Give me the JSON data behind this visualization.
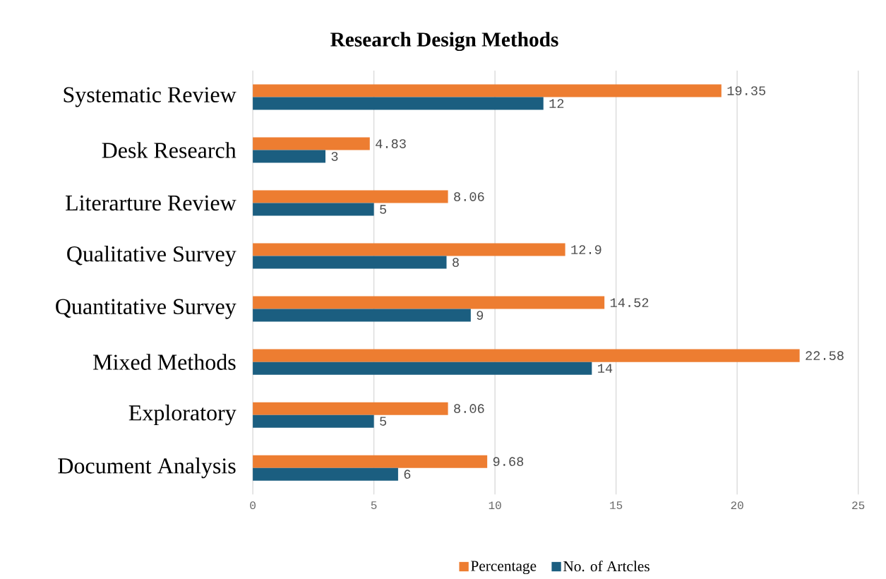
{
  "chart_data": {
    "type": "bar",
    "orientation": "horizontal",
    "title": "Research Design Methods",
    "categories": [
      "Systematic Review",
      "Desk Research",
      "Literarture Review",
      "Qualitative Survey",
      "Quantitative Survey",
      "Mixed  Methods",
      "Exploratory",
      "Document Analysis"
    ],
    "series": [
      {
        "name": "Percentage",
        "color": "#ed7d31",
        "values": [
          19.35,
          4.83,
          8.06,
          12.9,
          14.52,
          22.58,
          8.06,
          9.68
        ]
      },
      {
        "name": "No. of Artcles",
        "color": "#1b5e80",
        "values": [
          12,
          3,
          5,
          8,
          9,
          14,
          5,
          6
        ]
      }
    ],
    "xlim": [
      0,
      25
    ],
    "xticks": [
      0,
      5,
      10,
      15,
      20,
      25
    ],
    "grid": "x",
    "data_labels": true,
    "legend": "bottom"
  }
}
